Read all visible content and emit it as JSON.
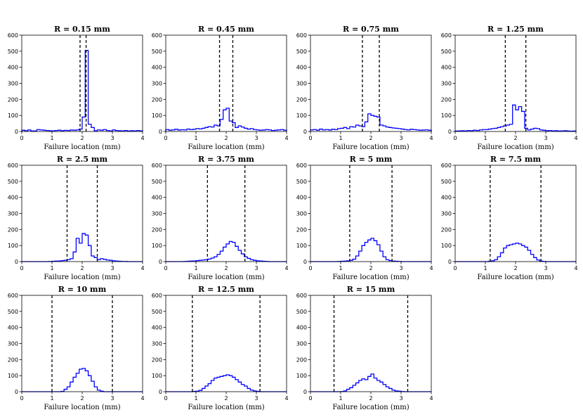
{
  "figure": {
    "colors": {
      "histogram": "#0000ff",
      "boundary": "#000000"
    }
  },
  "chart_data": [
    {
      "type": "histogram",
      "title": "R = 0.15 mm",
      "xlabel": "Failure location (mm)",
      "ylabel": "",
      "xlim": [
        0,
        4
      ],
      "ylim": [
        0,
        600
      ],
      "xticks": [
        "0",
        "1",
        "2",
        "3",
        "4"
      ],
      "yticks": [
        "0",
        "100",
        "200",
        "300",
        "400",
        "500",
        "600"
      ],
      "bin_edges": [
        0,
        0.1,
        0.2,
        0.3,
        0.4,
        0.5,
        0.6,
        0.7,
        0.8,
        0.9,
        1.0,
        1.1,
        1.2,
        1.3,
        1.4,
        1.5,
        1.6,
        1.7,
        1.8,
        1.9,
        2.0,
        2.1,
        2.2,
        2.3,
        2.4,
        2.5,
        2.6,
        2.7,
        2.8,
        2.9,
        3.0,
        3.1,
        3.2,
        3.3,
        3.4,
        3.5,
        3.6,
        3.7,
        3.8,
        3.9,
        4.0
      ],
      "counts": [
        8,
        5,
        10,
        3,
        4,
        12,
        10,
        8,
        6,
        5,
        4,
        6,
        8,
        5,
        7,
        6,
        9,
        8,
        10,
        15,
        90,
        505,
        45,
        25,
        5,
        10,
        8,
        12,
        6,
        4,
        10,
        6,
        5,
        4,
        6,
        3,
        5,
        4,
        6,
        4
      ],
      "boundaries": [
        1.93,
        2.13
      ]
    },
    {
      "type": "histogram",
      "title": "R = 0.45 mm",
      "xlabel": "Failure location (mm)",
      "ylabel": "",
      "xlim": [
        0,
        4
      ],
      "ylim": [
        0,
        600
      ],
      "xticks": [
        "0",
        "1",
        "2",
        "3",
        "4"
      ],
      "yticks": [
        "0",
        "100",
        "200",
        "300",
        "400",
        "500",
        "600"
      ],
      "bin_edges": [
        0,
        0.1,
        0.2,
        0.3,
        0.4,
        0.5,
        0.6,
        0.7,
        0.8,
        0.9,
        1.0,
        1.1,
        1.2,
        1.3,
        1.4,
        1.5,
        1.6,
        1.7,
        1.8,
        1.9,
        2.0,
        2.1,
        2.2,
        2.3,
        2.4,
        2.5,
        2.6,
        2.7,
        2.8,
        2.9,
        3.0,
        3.1,
        3.2,
        3.3,
        3.4,
        3.5,
        3.6,
        3.7,
        3.8,
        3.9,
        4.0
      ],
      "counts": [
        12,
        8,
        10,
        14,
        9,
        11,
        10,
        15,
        12,
        14,
        18,
        16,
        20,
        25,
        30,
        28,
        40,
        35,
        75,
        135,
        145,
        65,
        55,
        25,
        35,
        28,
        20,
        15,
        18,
        12,
        10,
        8,
        9,
        12,
        10,
        6,
        8,
        10,
        12,
        8
      ],
      "boundaries": [
        1.78,
        2.22
      ]
    },
    {
      "type": "histogram",
      "title": "R = 0.75 mm",
      "xlabel": "Failure location (mm)",
      "ylabel": "",
      "xlim": [
        0,
        4
      ],
      "ylim": [
        0,
        600
      ],
      "xticks": [
        "0",
        "1",
        "2",
        "3",
        "4"
      ],
      "yticks": [
        "0",
        "100",
        "200",
        "300",
        "400",
        "500",
        "600"
      ],
      "bin_edges": [
        0,
        0.1,
        0.2,
        0.3,
        0.4,
        0.5,
        0.6,
        0.7,
        0.8,
        0.9,
        1.0,
        1.1,
        1.2,
        1.3,
        1.4,
        1.5,
        1.6,
        1.7,
        1.8,
        1.9,
        2.0,
        2.1,
        2.2,
        2.3,
        2.4,
        2.5,
        2.6,
        2.7,
        2.8,
        2.9,
        3.0,
        3.1,
        3.2,
        3.3,
        3.4,
        3.5,
        3.6,
        3.7,
        3.8,
        3.9,
        4.0
      ],
      "counts": [
        10,
        12,
        8,
        15,
        10,
        12,
        9,
        14,
        12,
        18,
        20,
        25,
        18,
        30,
        28,
        40,
        35,
        30,
        60,
        110,
        100,
        95,
        90,
        40,
        35,
        28,
        25,
        22,
        20,
        18,
        15,
        12,
        10,
        14,
        12,
        10,
        8,
        9,
        10,
        8
      ],
      "boundaries": [
        1.72,
        2.28
      ]
    },
    {
      "type": "histogram",
      "title": "R = 1.25 mm",
      "xlabel": "Failure location (mm)",
      "ylabel": "",
      "xlim": [
        0,
        4
      ],
      "ylim": [
        0,
        600
      ],
      "xticks": [
        "0",
        "1",
        "2",
        "3",
        "4"
      ],
      "yticks": [
        "0",
        "100",
        "200",
        "300",
        "400",
        "500",
        "600"
      ],
      "bin_edges": [
        0,
        0.1,
        0.2,
        0.3,
        0.4,
        0.5,
        0.6,
        0.7,
        0.8,
        0.9,
        1.0,
        1.1,
        1.2,
        1.3,
        1.4,
        1.5,
        1.6,
        1.7,
        1.8,
        1.9,
        2.0,
        2.1,
        2.2,
        2.3,
        2.4,
        2.5,
        2.6,
        2.7,
        2.8,
        2.9,
        3.0,
        3.1,
        3.2,
        3.3,
        3.4,
        3.5,
        3.6,
        3.7,
        3.8,
        3.9,
        4.0
      ],
      "counts": [
        3,
        4,
        5,
        3,
        6,
        5,
        8,
        6,
        10,
        12,
        12,
        15,
        18,
        20,
        25,
        30,
        35,
        40,
        45,
        165,
        135,
        155,
        125,
        20,
        10,
        15,
        20,
        18,
        10,
        8,
        5,
        6,
        4,
        5,
        3,
        4,
        5,
        3,
        2,
        3
      ],
      "boundaries": [
        1.66,
        2.34
      ]
    },
    {
      "type": "histogram",
      "title": "R = 2.5 mm",
      "xlabel": "Failure location (mm)",
      "ylabel": "",
      "xlim": [
        0,
        4
      ],
      "ylim": [
        0,
        600
      ],
      "xticks": [
        "0",
        "1",
        "2",
        "3",
        "4"
      ],
      "yticks": [
        "0",
        "100",
        "200",
        "300",
        "400",
        "500",
        "600"
      ],
      "bin_edges": [
        0,
        0.1,
        0.2,
        0.3,
        0.4,
        0.5,
        0.6,
        0.7,
        0.8,
        0.9,
        1.0,
        1.1,
        1.2,
        1.3,
        1.4,
        1.5,
        1.6,
        1.7,
        1.8,
        1.9,
        2.0,
        2.1,
        2.2,
        2.3,
        2.4,
        2.5,
        2.6,
        2.7,
        2.8,
        2.9,
        3.0,
        3.1,
        3.2,
        3.3,
        3.4,
        3.5,
        3.6,
        3.7,
        3.8,
        3.9,
        4.0
      ],
      "counts": [
        0,
        0,
        0,
        0,
        0,
        0,
        0,
        0,
        0,
        1,
        2,
        3,
        4,
        6,
        8,
        12,
        18,
        60,
        145,
        115,
        175,
        165,
        100,
        35,
        25,
        12,
        18,
        14,
        10,
        8,
        5,
        3,
        2,
        1,
        1,
        0,
        0,
        0,
        0,
        0
      ],
      "boundaries": [
        1.5,
        2.5
      ]
    },
    {
      "type": "histogram",
      "title": "R = 3.75 mm",
      "xlabel": "Failure location (mm)",
      "ylabel": "",
      "xlim": [
        0,
        4
      ],
      "ylim": [
        0,
        600
      ],
      "xticks": [
        "0",
        "1",
        "2",
        "3",
        "4"
      ],
      "yticks": [
        "0",
        "100",
        "200",
        "300",
        "400",
        "500",
        "600"
      ],
      "bin_edges": [
        0,
        0.1,
        0.2,
        0.3,
        0.4,
        0.5,
        0.6,
        0.7,
        0.8,
        0.9,
        1.0,
        1.1,
        1.2,
        1.3,
        1.4,
        1.5,
        1.6,
        1.7,
        1.8,
        1.9,
        2.0,
        2.1,
        2.2,
        2.3,
        2.4,
        2.5,
        2.6,
        2.7,
        2.8,
        2.9,
        3.0,
        3.1,
        3.2,
        3.3,
        3.4,
        3.5,
        3.6,
        3.7,
        3.8,
        3.9,
        4.0
      ],
      "counts": [
        0,
        0,
        0,
        0,
        0,
        0,
        1,
        2,
        3,
        4,
        6,
        8,
        10,
        12,
        16,
        22,
        30,
        45,
        65,
        90,
        110,
        125,
        120,
        95,
        70,
        48,
        30,
        20,
        12,
        8,
        5,
        4,
        2,
        1,
        0,
        0,
        0,
        0,
        0,
        0
      ],
      "boundaries": [
        1.38,
        2.62
      ]
    },
    {
      "type": "histogram",
      "title": "R = 5 mm",
      "xlabel": "Failure location (mm)",
      "ylabel": "",
      "xlim": [
        0,
        4
      ],
      "ylim": [
        0,
        600
      ],
      "xticks": [
        "0",
        "1",
        "2",
        "3",
        "4"
      ],
      "yticks": [
        "0",
        "100",
        "200",
        "300",
        "400",
        "500",
        "600"
      ],
      "bin_edges": [
        0,
        0.1,
        0.2,
        0.3,
        0.4,
        0.5,
        0.6,
        0.7,
        0.8,
        0.9,
        1.0,
        1.1,
        1.2,
        1.3,
        1.4,
        1.5,
        1.6,
        1.7,
        1.8,
        1.9,
        2.0,
        2.1,
        2.2,
        2.3,
        2.4,
        2.5,
        2.6,
        2.7,
        2.8,
        2.9,
        3.0,
        3.1,
        3.2,
        3.3,
        3.4,
        3.5,
        3.6,
        3.7,
        3.8,
        3.9,
        4.0
      ],
      "counts": [
        0,
        0,
        0,
        0,
        0,
        0,
        0,
        0,
        0,
        1,
        2,
        3,
        5,
        8,
        15,
        35,
        65,
        100,
        120,
        135,
        145,
        130,
        105,
        65,
        30,
        12,
        6,
        3,
        2,
        1,
        0,
        0,
        0,
        0,
        0,
        0,
        0,
        0,
        0,
        0
      ],
      "boundaries": [
        1.3,
        2.7
      ]
    },
    {
      "type": "histogram",
      "title": "R = 7.5 mm",
      "xlabel": "Failure location (mm)",
      "ylabel": "",
      "xlim": [
        0,
        4
      ],
      "ylim": [
        0,
        600
      ],
      "xticks": [
        "0",
        "1",
        "2",
        "3",
        "4"
      ],
      "yticks": [
        "0",
        "100",
        "200",
        "300",
        "400",
        "500",
        "600"
      ],
      "bin_edges": [
        0,
        0.1,
        0.2,
        0.3,
        0.4,
        0.5,
        0.6,
        0.7,
        0.8,
        0.9,
        1.0,
        1.1,
        1.2,
        1.3,
        1.4,
        1.5,
        1.6,
        1.7,
        1.8,
        1.9,
        2.0,
        2.1,
        2.2,
        2.3,
        2.4,
        2.5,
        2.6,
        2.7,
        2.8,
        2.9,
        3.0,
        3.1,
        3.2,
        3.3,
        3.4,
        3.5,
        3.6,
        3.7,
        3.8,
        3.9,
        4.0
      ],
      "counts": [
        0,
        0,
        0,
        0,
        0,
        0,
        0,
        0,
        0,
        0,
        0,
        2,
        5,
        12,
        30,
        55,
        85,
        100,
        105,
        110,
        115,
        110,
        100,
        90,
        70,
        45,
        25,
        10,
        3,
        1,
        0,
        0,
        0,
        0,
        0,
        0,
        0,
        0,
        0,
        0
      ],
      "boundaries": [
        1.16,
        2.84
      ]
    },
    {
      "type": "histogram",
      "title": "R = 10 mm",
      "xlabel": "Failure location (mm)",
      "ylabel": "",
      "xlim": [
        0,
        4
      ],
      "ylim": [
        0,
        600
      ],
      "xticks": [
        "0",
        "1",
        "2",
        "3",
        "4"
      ],
      "yticks": [
        "0",
        "100",
        "200",
        "300",
        "400",
        "500",
        "600"
      ],
      "bin_edges": [
        0,
        0.1,
        0.2,
        0.3,
        0.4,
        0.5,
        0.6,
        0.7,
        0.8,
        0.9,
        1.0,
        1.1,
        1.2,
        1.3,
        1.4,
        1.5,
        1.6,
        1.7,
        1.8,
        1.9,
        2.0,
        2.1,
        2.2,
        2.3,
        2.4,
        2.5,
        2.6,
        2.7,
        2.8,
        2.9,
        3.0,
        3.1,
        3.2,
        3.3,
        3.4,
        3.5,
        3.6,
        3.7,
        3.8,
        3.9,
        4.0
      ],
      "counts": [
        0,
        0,
        0,
        0,
        0,
        0,
        0,
        0,
        0,
        0,
        0,
        0,
        0,
        2,
        15,
        30,
        60,
        90,
        115,
        140,
        145,
        130,
        100,
        65,
        30,
        10,
        3,
        0,
        0,
        0,
        0,
        0,
        0,
        0,
        0,
        0,
        0,
        0,
        0,
        0
      ],
      "boundaries": [
        1.0,
        3.0
      ]
    },
    {
      "type": "histogram",
      "title": "R = 12.5 mm",
      "xlabel": "Failure location (mm)",
      "ylabel": "",
      "xlim": [
        0,
        4
      ],
      "ylim": [
        0,
        600
      ],
      "xticks": [
        "0",
        "1",
        "2",
        "3",
        "4"
      ],
      "yticks": [
        "0",
        "100",
        "200",
        "300",
        "400",
        "500",
        "600"
      ],
      "bin_edges": [
        0,
        0.1,
        0.2,
        0.3,
        0.4,
        0.5,
        0.6,
        0.7,
        0.8,
        0.9,
        1.0,
        1.1,
        1.2,
        1.3,
        1.4,
        1.5,
        1.6,
        1.7,
        1.8,
        1.9,
        2.0,
        2.1,
        2.2,
        2.3,
        2.4,
        2.5,
        2.6,
        2.7,
        2.8,
        2.9,
        3.0,
        3.1,
        3.2,
        3.3,
        3.4,
        3.5,
        3.6,
        3.7,
        3.8,
        3.9,
        4.0
      ],
      "counts": [
        0,
        0,
        0,
        0,
        0,
        0,
        0,
        0,
        0,
        2,
        3,
        8,
        20,
        35,
        50,
        70,
        85,
        90,
        95,
        100,
        105,
        100,
        90,
        75,
        60,
        45,
        35,
        20,
        10,
        5,
        2,
        0,
        0,
        0,
        0,
        0,
        0,
        0,
        0,
        0
      ],
      "boundaries": [
        0.88,
        3.12
      ]
    },
    {
      "type": "histogram",
      "title": "R = 15 mm",
      "xlabel": "Failure location (mm)",
      "ylabel": "",
      "xlim": [
        0,
        4
      ],
      "ylim": [
        0,
        600
      ],
      "xticks": [
        "0",
        "1",
        "2",
        "3",
        "4"
      ],
      "yticks": [
        "0",
        "100",
        "200",
        "300",
        "400",
        "500",
        "600"
      ],
      "bin_edges": [
        0,
        0.1,
        0.2,
        0.3,
        0.4,
        0.5,
        0.6,
        0.7,
        0.8,
        0.9,
        1.0,
        1.1,
        1.2,
        1.3,
        1.4,
        1.5,
        1.6,
        1.7,
        1.8,
        1.9,
        2.0,
        2.1,
        2.2,
        2.3,
        2.4,
        2.5,
        2.6,
        2.7,
        2.8,
        2.9,
        3.0,
        3.1,
        3.2,
        3.3,
        3.4,
        3.5,
        3.6,
        3.7,
        3.8,
        3.9,
        4.0
      ],
      "counts": [
        0,
        0,
        0,
        0,
        0,
        0,
        0,
        0,
        0,
        0,
        1,
        5,
        15,
        25,
        40,
        55,
        70,
        80,
        75,
        95,
        110,
        85,
        70,
        60,
        45,
        30,
        20,
        10,
        5,
        3,
        1,
        0,
        0,
        0,
        0,
        0,
        0,
        0,
        0,
        0
      ],
      "boundaries": [
        0.78,
        3.22
      ]
    }
  ]
}
